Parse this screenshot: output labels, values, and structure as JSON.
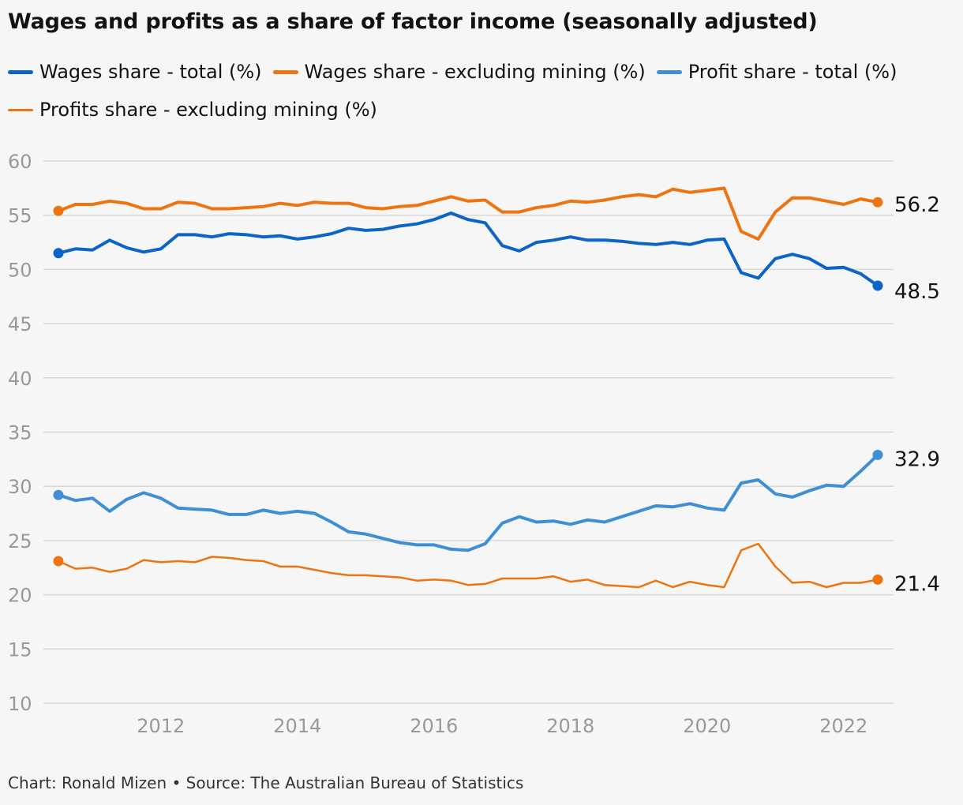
{
  "title": "Wages and profits as a share of factor income (seasonally adjusted)",
  "footer": "Chart: Ronald Mizen • Source: The Australian Bureau of Statistics",
  "colors": {
    "wages_total": "#0c63c8",
    "wages_ex_mining": "#ed7410",
    "profit_total": "#3f8fd7",
    "profits_ex_mining": "#ed7410",
    "grid": "#d8d8d8",
    "tick": "#999999",
    "end_label": "#121212"
  },
  "chart_data": {
    "type": "line",
    "title": "Wages and profits as a share of factor income (seasonally adjusted)",
    "xlabel": "",
    "ylabel": "",
    "ylim": [
      10,
      60
    ],
    "xlim": [
      2010.375,
      2022.5
    ],
    "yticks": [
      10,
      15,
      20,
      25,
      30,
      35,
      40,
      45,
      50,
      55,
      60
    ],
    "xticks": [
      2012,
      2014,
      2016,
      2018,
      2020,
      2022
    ],
    "grid": true,
    "legend_position": "top",
    "x_start": 2010.5,
    "x_step": 0.25,
    "series": [
      {
        "name": "Wages share - total (%)",
        "key": "wages_total",
        "line_width": 4,
        "end_label": "48.5",
        "values": [
          51.5,
          51.9,
          51.8,
          52.7,
          52.0,
          51.6,
          51.9,
          53.2,
          53.2,
          53.0,
          53.3,
          53.2,
          53.0,
          53.1,
          52.8,
          53.0,
          53.3,
          53.8,
          53.6,
          53.7,
          54.0,
          54.2,
          54.6,
          55.2,
          54.6,
          54.3,
          52.2,
          51.7,
          52.5,
          52.7,
          53.0,
          52.7,
          52.7,
          52.6,
          52.4,
          52.3,
          52.5,
          52.3,
          52.7,
          52.8,
          49.7,
          49.2,
          51.0,
          51.4,
          51.0,
          50.1,
          50.2,
          49.6,
          48.5
        ]
      },
      {
        "name": "Wages share - excluding mining (%)",
        "key": "wages_ex_mining",
        "line_width": 4,
        "end_label": "56.2",
        "values": [
          55.4,
          56.0,
          56.0,
          56.3,
          56.1,
          55.6,
          55.6,
          56.2,
          56.1,
          55.6,
          55.6,
          55.7,
          55.8,
          56.1,
          55.9,
          56.2,
          56.1,
          56.1,
          55.7,
          55.6,
          55.8,
          55.9,
          56.3,
          56.7,
          56.3,
          56.4,
          55.3,
          55.3,
          55.7,
          55.9,
          56.3,
          56.2,
          56.4,
          56.7,
          56.9,
          56.7,
          57.4,
          57.1,
          57.3,
          57.5,
          53.5,
          52.8,
          55.3,
          56.6,
          56.6,
          56.3,
          56.0,
          56.5,
          56.2
        ]
      },
      {
        "name": "Profit share - total (%)",
        "key": "profit_total",
        "line_width": 4,
        "end_label": "32.9",
        "values": [
          29.2,
          28.7,
          28.9,
          27.7,
          28.8,
          29.4,
          28.9,
          28.0,
          27.9,
          27.8,
          27.4,
          27.4,
          27.8,
          27.5,
          27.7,
          27.5,
          26.7,
          25.8,
          25.6,
          25.2,
          24.8,
          24.6,
          24.6,
          24.2,
          24.1,
          24.7,
          26.6,
          27.2,
          26.7,
          26.8,
          26.5,
          26.9,
          26.7,
          27.2,
          27.7,
          28.2,
          28.1,
          28.4,
          28.0,
          27.8,
          30.3,
          30.6,
          29.3,
          29.0,
          29.6,
          30.1,
          30.0,
          31.4,
          32.9
        ]
      },
      {
        "name": "Profits share - excluding mining (%)",
        "key": "profits_ex_mining",
        "line_width": 2.5,
        "end_label": "21.4",
        "values": [
          23.1,
          22.4,
          22.5,
          22.1,
          22.4,
          23.2,
          23.0,
          23.1,
          23.0,
          23.5,
          23.4,
          23.2,
          23.1,
          22.6,
          22.6,
          22.3,
          22.0,
          21.8,
          21.8,
          21.7,
          21.6,
          21.3,
          21.4,
          21.3,
          20.9,
          21.0,
          21.5,
          21.5,
          21.5,
          21.7,
          21.2,
          21.4,
          20.9,
          20.8,
          20.7,
          21.3,
          20.7,
          21.2,
          20.9,
          20.7,
          24.1,
          24.7,
          22.6,
          21.1,
          21.2,
          20.7,
          21.1,
          21.1,
          21.4
        ]
      }
    ]
  }
}
